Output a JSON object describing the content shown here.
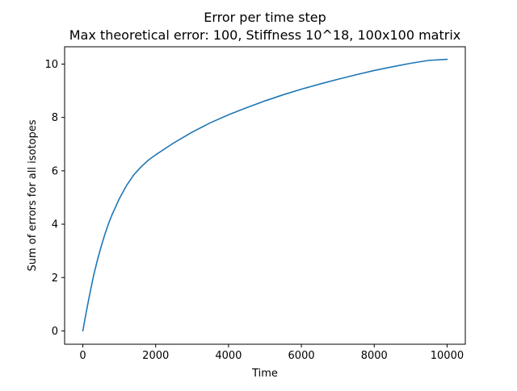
{
  "chart_data": {
    "type": "line",
    "title": "Error per time step",
    "subtitle": "Max theoretical error: 100, Stiffness 10^18, 100x100 matrix",
    "xlabel": "Time",
    "ylabel": "Sum of errors for all isotopes",
    "xlim": [
      -500,
      10500
    ],
    "ylim": [
      -0.5,
      10.65
    ],
    "grid": false,
    "x_ticks": [
      0,
      2000,
      4000,
      6000,
      8000,
      10000
    ],
    "y_ticks": [
      0,
      2,
      4,
      6,
      8,
      10
    ],
    "line_color": "#1f77b4",
    "series": [
      {
        "x": [
          0,
          100,
          200,
          300,
          400,
          500,
          600,
          700,
          800,
          900,
          1000,
          1200,
          1400,
          1600,
          1800,
          2000,
          2500,
          3000,
          3500,
          4000,
          4500,
          5000,
          5500,
          6000,
          6500,
          7000,
          7500,
          8000,
          8500,
          9000,
          9500,
          10000
        ],
        "y": [
          0.0,
          0.75,
          1.45,
          2.1,
          2.65,
          3.15,
          3.6,
          4.0,
          4.35,
          4.65,
          4.95,
          5.45,
          5.85,
          6.15,
          6.4,
          6.6,
          7.05,
          7.45,
          7.8,
          8.1,
          8.37,
          8.62,
          8.85,
          9.06,
          9.25,
          9.43,
          9.6,
          9.76,
          9.9,
          10.03,
          10.14,
          10.18
        ]
      }
    ]
  }
}
